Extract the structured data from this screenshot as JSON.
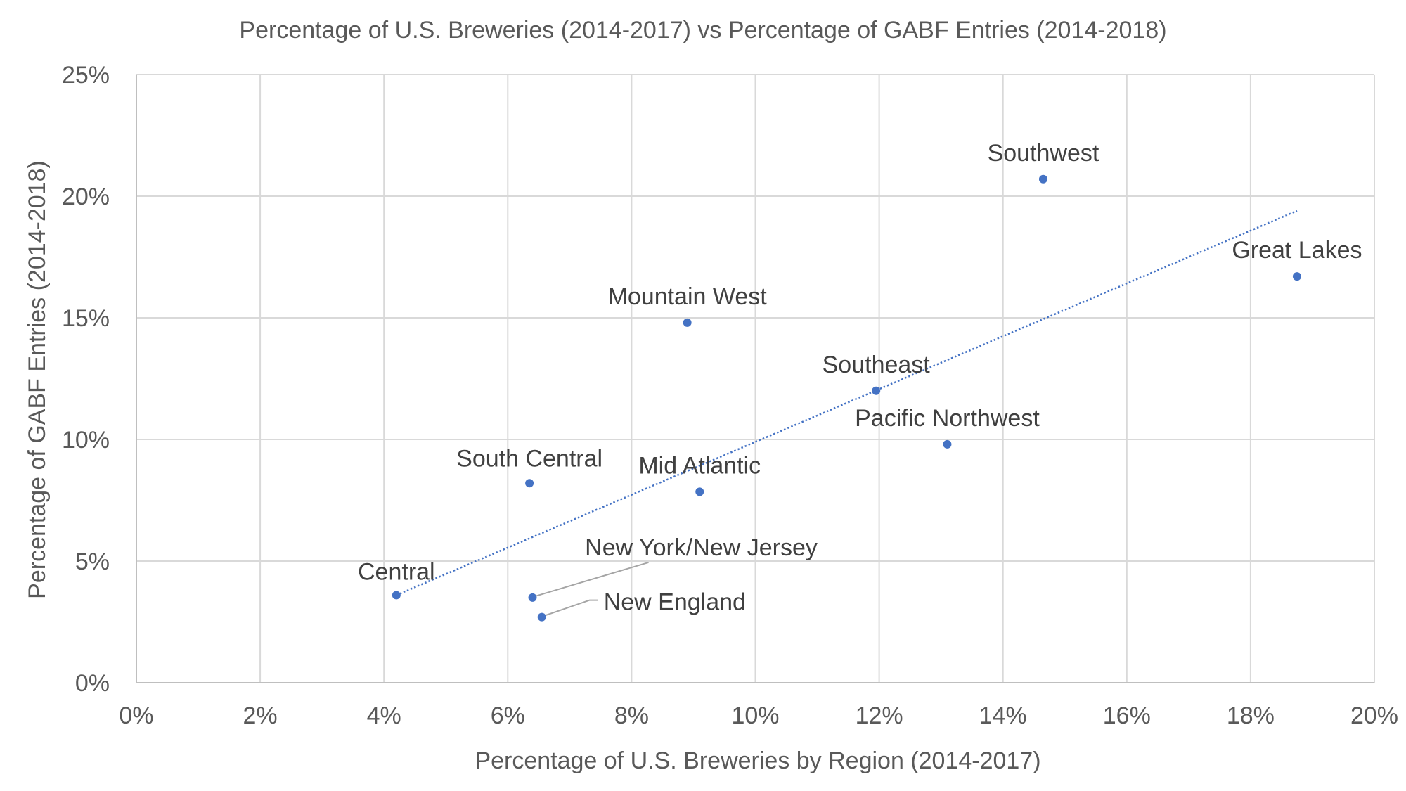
{
  "chart_data": {
    "type": "scatter",
    "title": "Percentage of U.S. Breweries (2014-2017) vs Percentage of GABF Entries (2014-2018)",
    "xlabel": "Percentage of U.S. Breweries by Region (2014-2017)",
    "ylabel": "Percentage of GABF Entries (2014-2018)",
    "xlim": [
      0,
      20
    ],
    "ylim": [
      0,
      25
    ],
    "x_ticks": [
      0,
      2,
      4,
      6,
      8,
      10,
      12,
      14,
      16,
      18,
      20
    ],
    "y_ticks": [
      0,
      5,
      10,
      15,
      20,
      25
    ],
    "x_tick_labels": [
      "0%",
      "2%",
      "4%",
      "6%",
      "8%",
      "10%",
      "12%",
      "14%",
      "16%",
      "18%",
      "20%"
    ],
    "y_tick_labels": [
      "0%",
      "5%",
      "10%",
      "15%",
      "20%",
      "25%"
    ],
    "grid": true,
    "legend": "none",
    "point_color": "#4472c4",
    "points": [
      {
        "label": "Central",
        "x": 4.2,
        "y": 3.6
      },
      {
        "label": "South Central",
        "x": 6.35,
        "y": 8.2
      },
      {
        "label": "New York/New Jersey",
        "x": 6.4,
        "y": 3.5
      },
      {
        "label": "New England",
        "x": 6.55,
        "y": 2.7
      },
      {
        "label": "Mountain West",
        "x": 8.9,
        "y": 14.8
      },
      {
        "label": "Mid Atlantic",
        "x": 9.1,
        "y": 7.85
      },
      {
        "label": "Southeast",
        "x": 11.95,
        "y": 12.0
      },
      {
        "label": "Pacific Northwest",
        "x": 13.1,
        "y": 9.8
      },
      {
        "label": "Southwest",
        "x": 14.65,
        "y": 20.7
      },
      {
        "label": "Great Lakes",
        "x": 18.75,
        "y": 16.7
      }
    ],
    "trendline": {
      "type": "linear",
      "style": "dotted",
      "x_start": 4.2,
      "x_end": 18.75,
      "y_start": 3.6,
      "y_end": 19.4
    }
  }
}
